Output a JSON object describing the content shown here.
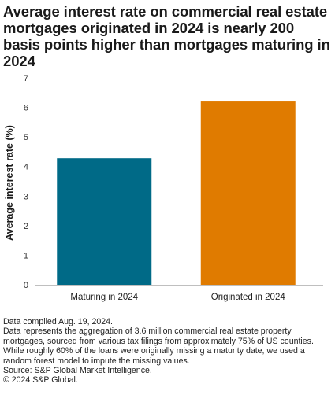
{
  "title": "Average interest rate on commercial real estate mortgages originated in 2024 is nearly 200 basis points higher than mortgages maturing in 2024",
  "footnotes": {
    "compiled": "Data compiled Aug. 19, 2024.",
    "description": "Data represents the aggregation of 3.6 million commercial real estate property mortgages, sourced from various tax filings from approximately 75% of US counties. While roughly 60% of the loans were originally missing a maturity date, we used a random forest model to impute the missing values.",
    "source": "Source: S&P Global Market Intelligence.",
    "copyright": "© 2024 S&P Global."
  },
  "chart_data": {
    "type": "bar",
    "categories": [
      "Maturing in 2024",
      "Originated in 2024"
    ],
    "values": [
      4.28,
      6.2
    ],
    "colors": [
      "#006a87",
      "#e07b00"
    ],
    "title": "",
    "xlabel": "",
    "ylabel": "Average interest rate (%)",
    "ylim": [
      0,
      7
    ],
    "yticks": [
      "0",
      "1",
      "2",
      "3",
      "4",
      "5",
      "6",
      "7"
    ],
    "grid": false,
    "legend": "none"
  }
}
